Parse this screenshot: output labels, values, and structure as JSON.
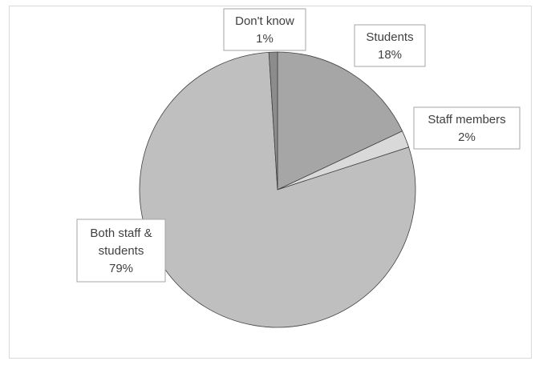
{
  "chart_data": {
    "type": "pie",
    "title": "",
    "categories": [
      "Students",
      "Staff members",
      "Both staff & students",
      "Don't know"
    ],
    "values": [
      18,
      2,
      79,
      1
    ],
    "labels": [
      {
        "lines": [
          "Students",
          "18%"
        ]
      },
      {
        "lines": [
          "Staff members",
          "2%"
        ]
      },
      {
        "lines": [
          "Both staff &",
          "students",
          "79%"
        ]
      },
      {
        "lines": [
          "Don't know",
          "1%"
        ]
      }
    ],
    "colors": [
      "#a6a6a6",
      "#d9d9d9",
      "#bfbfbf",
      "#8c8c8c"
    ],
    "start_angle_deg": 0,
    "direction": "clockwise",
    "legend": "none"
  }
}
